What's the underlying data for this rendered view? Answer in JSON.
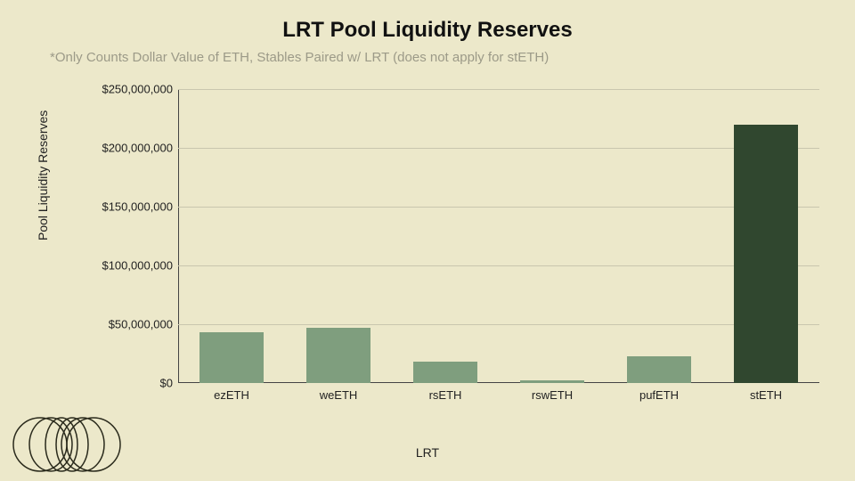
{
  "chart": {
    "type": "bar",
    "title": "LRT Pool Liquidity Reserves",
    "title_fontsize": 24,
    "subtitle": "*Only Counts Dollar Value of ETH, Stables Paired w/ LRT (does not apply for stETH)",
    "subtitle_fontsize": 15,
    "subtitle_color": "#9c9a88",
    "background_color": "#ece8ca",
    "xlabel": "LRT",
    "ylabel": "Pool Liquidity Reserves",
    "label_fontsize": 14,
    "ylim": [
      0,
      250000000
    ],
    "ytick_step": 50000000,
    "yticks": [
      {
        "v": 0,
        "label": "$0"
      },
      {
        "v": 50000000,
        "label": "$50,000,000"
      },
      {
        "v": 100000000,
        "label": "$100,000,000"
      },
      {
        "v": 150000000,
        "label": "$150,000,000"
      },
      {
        "v": 200000000,
        "label": "$200,000,000"
      },
      {
        "v": 250000000,
        "label": "$250,000,000"
      }
    ],
    "tick_fontsize": 13,
    "grid_color": "#c9c6ae",
    "axis_color": "#444444",
    "categories": [
      "ezETH",
      "weETH",
      "rsETH",
      "rswETH",
      "pufETH",
      "stETH"
    ],
    "values": [
      43000000,
      47000000,
      18000000,
      2000000,
      23000000,
      220000000
    ],
    "bar_colors": [
      "#7f9e7e",
      "#7f9e7e",
      "#7f9e7e",
      "#7f9e7e",
      "#7f9e7e",
      "#30472f"
    ],
    "bar_width": 0.6
  },
  "logo": {
    "stroke": "#2a2a1c",
    "rings": 6
  }
}
